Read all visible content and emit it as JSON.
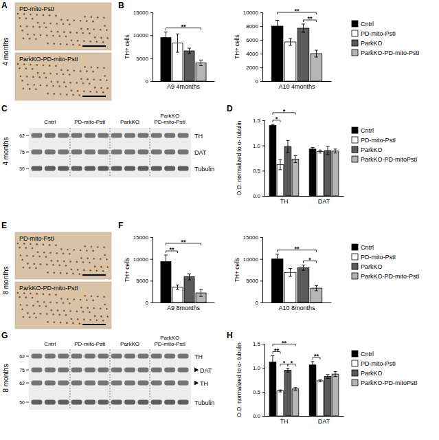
{
  "chart_data": [
    {
      "type": "bar",
      "categories": [
        "A9 4months"
      ],
      "y_label": "TH+ cells",
      "ylim": [
        0,
        15000
      ],
      "yticks": [
        0,
        5000,
        10000,
        15000
      ],
      "series": [
        {
          "name": "Cntrl",
          "color": "#000000",
          "values": [
            9500
          ],
          "errors": [
            1200
          ]
        },
        {
          "name": "PD-mito-PstI",
          "color": "#ffffff",
          "values": [
            8300
          ],
          "errors": [
            2000
          ]
        },
        {
          "name": "ParkKO",
          "color": "#5a5a5a",
          "values": [
            6600
          ],
          "errors": [
            600
          ]
        },
        {
          "name": "ParkKO-PD-mito-PstI",
          "color": "#b5b5b5",
          "values": [
            4000
          ],
          "errors": [
            600
          ]
        }
      ],
      "significance": [
        {
          "category": 0,
          "from": 0,
          "to": 3,
          "label": "**"
        }
      ]
    },
    {
      "type": "bar",
      "categories": [
        "A10 4months"
      ],
      "y_label": "TH+ cells",
      "ylim": [
        0,
        10000
      ],
      "yticks": [
        0,
        2000,
        4000,
        6000,
        8000,
        10000
      ],
      "legend": "right",
      "series": [
        {
          "name": "Cntrl",
          "color": "#000000",
          "values": [
            8000
          ],
          "errors": [
            850
          ]
        },
        {
          "name": "PD-mito-PstI",
          "color": "#ffffff",
          "values": [
            5700
          ],
          "errors": [
            500
          ]
        },
        {
          "name": "ParkKO",
          "color": "#5a5a5a",
          "values": [
            7700
          ],
          "errors": [
            600
          ]
        },
        {
          "name": "ParkKO-PD-mito-PstI",
          "color": "#b5b5b5",
          "values": [
            4000
          ],
          "errors": [
            500
          ]
        }
      ],
      "significance": [
        {
          "category": 0,
          "from": 2,
          "to": 3,
          "label": "**"
        },
        {
          "category": 0,
          "from": 0,
          "to": 3,
          "label": "**"
        }
      ]
    },
    {
      "type": "bar",
      "categories": [
        "TH",
        "DAT"
      ],
      "y_label": "O.D. normalized to α- tubulin",
      "ylim": [
        0,
        1.5
      ],
      "yticks": [
        {
          "value": 0,
          "label": "0.0"
        },
        {
          "value": 0.5,
          "label": "0.5"
        },
        {
          "value": 1,
          "label": "1.0"
        },
        {
          "value": 1.5,
          "label": "1.5"
        }
      ],
      "legend": "right",
      "series": [
        {
          "name": "Cntrl",
          "color": "#000000",
          "values": [
            1.4,
            0.93
          ],
          "errors": [
            0.02,
            0.03
          ]
        },
        {
          "name": "PD-mito-PstI",
          "color": "#ffffff",
          "values": [
            0.62,
            0.88
          ],
          "errors": [
            0.1,
            0.03
          ]
        },
        {
          "name": "ParkKO",
          "color": "#5a5a5a",
          "values": [
            0.98,
            0.9
          ],
          "errors": [
            0.12,
            0.08
          ]
        },
        {
          "name": "ParkKO-PD-mitoPstI",
          "color": "#b5b5b5",
          "values": [
            0.73,
            0.89
          ],
          "errors": [
            0.07,
            0.04
          ]
        }
      ],
      "significance": [
        {
          "category": 0,
          "from": 0,
          "to": 1,
          "label": "*"
        },
        {
          "category": 0,
          "from": 0,
          "to": 3,
          "label": "*"
        }
      ]
    },
    {
      "type": "bar",
      "categories": [
        "A9 8months"
      ],
      "y_label": "TH+ cells",
      "ylim": [
        0,
        15000
      ],
      "yticks": [
        0,
        5000,
        10000,
        15000
      ],
      "series": [
        {
          "name": "Cntrl",
          "color": "#000000",
          "values": [
            9400
          ],
          "errors": [
            1500
          ]
        },
        {
          "name": "PD-mito-PstI",
          "color": "#ffffff",
          "values": [
            3500
          ],
          "errors": [
            500
          ]
        },
        {
          "name": "ParkKO",
          "color": "#5a5a5a",
          "values": [
            5900
          ],
          "errors": [
            700
          ]
        },
        {
          "name": "ParkKO-PD-mito-PstI",
          "color": "#b5b5b5",
          "values": [
            2200
          ],
          "errors": [
            800
          ]
        }
      ],
      "significance": [
        {
          "category": 0,
          "from": 0,
          "to": 1,
          "label": "**"
        },
        {
          "category": 0,
          "from": 0,
          "to": 3,
          "label": "**"
        }
      ]
    },
    {
      "type": "bar",
      "categories": [
        "A10 8months"
      ],
      "y_label": "TH+ cells",
      "ylim": [
        0,
        15000
      ],
      "yticks": [
        0,
        5000,
        10000,
        15000
      ],
      "legend": "right",
      "series": [
        {
          "name": "Cntrl",
          "color": "#000000",
          "values": [
            10000
          ],
          "errors": [
            1100
          ]
        },
        {
          "name": "PD-mito-PstI",
          "color": "#ffffff",
          "values": [
            6900
          ],
          "errors": [
            900
          ]
        },
        {
          "name": "ParkKO",
          "color": "#5a5a5a",
          "values": [
            8000
          ],
          "errors": [
            600
          ]
        },
        {
          "name": "ParkKO-PD-mito-PstI",
          "color": "#b5b5b5",
          "values": [
            3300
          ],
          "errors": [
            600
          ]
        }
      ],
      "significance": [
        {
          "category": 0,
          "from": 2,
          "to": 3,
          "label": "*"
        },
        {
          "category": 0,
          "from": 0,
          "to": 3,
          "label": "**"
        }
      ]
    },
    {
      "type": "bar",
      "categories": [
        "TH",
        "DAT"
      ],
      "y_label": "O.D. normalized to α- tubulin",
      "ylim": [
        0,
        1.5
      ],
      "yticks": [
        {
          "value": 0,
          "label": "0.0"
        },
        {
          "value": 0.5,
          "label": "0.5"
        },
        {
          "value": 1,
          "label": "1.0"
        },
        {
          "value": 1.5,
          "label": "1.5"
        }
      ],
      "legend": "right",
      "series": [
        {
          "name": "Cntrl",
          "color": "#000000",
          "values": [
            1.12,
            1.06
          ],
          "errors": [
            0.13,
            0.07
          ]
        },
        {
          "name": "PD-mito-PstI",
          "color": "#ffffff",
          "values": [
            0.52,
            0.73
          ],
          "errors": [
            0.02,
            0.02
          ]
        },
        {
          "name": "ParkKO",
          "color": "#5a5a5a",
          "values": [
            0.95,
            0.82
          ],
          "errors": [
            0.04,
            0.04
          ]
        },
        {
          "name": "ParkKO-PD-mitoPstI",
          "color": "#b5b5b5",
          "values": [
            0.56,
            0.87
          ],
          "errors": [
            0.03,
            0.05
          ]
        }
      ],
      "significance": [
        {
          "category": 0,
          "from": 1,
          "to": 2,
          "label": "*"
        },
        {
          "category": 0,
          "from": 2,
          "to": 3,
          "label": "*"
        },
        {
          "category": 0,
          "from": 0,
          "to": 1,
          "label": "**"
        },
        {
          "category": 0,
          "from": 0,
          "to": 3,
          "label": "**"
        },
        {
          "category": 1,
          "from": 0,
          "to": 1,
          "label": "**"
        }
      ]
    }
  ],
  "figure": {
    "panel_letters": [
      "A",
      "B",
      "C",
      "D",
      "E",
      "F",
      "G",
      "H"
    ],
    "sections": [
      {
        "period": "4 months",
        "images": [
          "PD-mito-PstI",
          "ParkKO-PD-mito-PstI"
        ],
        "blot": {
          "lane_groups": [
            [
              "Cntrl"
            ],
            [
              "PD-mito-PstI"
            ],
            [
              "ParkKO"
            ],
            [
              "ParkKO",
              "PD-mito-PstI"
            ]
          ],
          "rows": [
            {
              "label": "TH",
              "mw": 62
            },
            {
              "label": "DAT",
              "mw": 75
            },
            {
              "label": "Tubulin",
              "mw": 50
            }
          ]
        }
      },
      {
        "period": "8 months",
        "images": [
          "PD-mito-PstI",
          "ParkKO-PD-mito-PstI"
        ],
        "blot": {
          "lane_groups": [
            [
              "Cntrl"
            ],
            [
              "PD-mito-PstI"
            ],
            [
              "ParkKO"
            ],
            [
              "ParkKO",
              "PD-mito-PstI"
            ]
          ],
          "rows": [
            {
              "label": "TH",
              "mw": 62
            },
            {
              "label": "DAT",
              "mw": 75,
              "arrow": true
            },
            {
              "label": "TH",
              "mw": 62,
              "arrow": true
            },
            {
              "label": "Tubulin",
              "mw": 50
            }
          ]
        }
      }
    ]
  }
}
